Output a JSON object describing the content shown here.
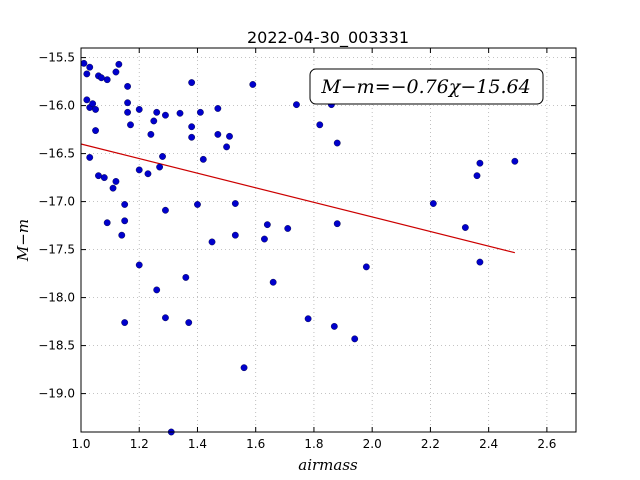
{
  "chart_data": {
    "type": "scatter",
    "title": "2022-04-30_003331",
    "xlabel": "airmass",
    "ylabel": "M−m",
    "xlim": [
      1.0,
      2.7
    ],
    "ylim": [
      -19.4,
      -15.4
    ],
    "xticks": [
      1.0,
      1.2,
      1.4,
      1.6,
      1.8,
      2.0,
      2.2,
      2.4,
      2.6
    ],
    "xtick_labels": [
      "1.0",
      "1.2",
      "1.4",
      "1.6",
      "1.8",
      "2.0",
      "2.2",
      "2.4",
      "2.6"
    ],
    "yticks": [
      -15.5,
      -16.0,
      -16.5,
      -17.0,
      -17.5,
      -18.0,
      -18.5,
      -19.0
    ],
    "ytick_labels": [
      "−15.5",
      "−16.0",
      "−16.5",
      "−17.0",
      "−17.5",
      "−18.0",
      "−18.5",
      "−19.0"
    ],
    "grid": true,
    "point_color": "#0000cc",
    "fit_color": "#cc0000",
    "fit_line": {
      "slope": -0.76,
      "intercept": -15.64,
      "x_range": [
        1.0,
        2.49
      ]
    },
    "annotation": "M−m=−0.76χ−15.64",
    "points": [
      [
        1.01,
        -15.56
      ],
      [
        1.02,
        -15.67
      ],
      [
        1.03,
        -15.6
      ],
      [
        1.06,
        -15.69
      ],
      [
        1.07,
        -15.71
      ],
      [
        1.09,
        -15.73
      ],
      [
        1.12,
        -15.65
      ],
      [
        1.13,
        -15.57
      ],
      [
        1.16,
        -15.8
      ],
      [
        1.02,
        -15.94
      ],
      [
        1.03,
        -16.02
      ],
      [
        1.04,
        -15.98
      ],
      [
        1.05,
        -16.04
      ],
      [
        1.05,
        -16.26
      ],
      [
        1.16,
        -15.97
      ],
      [
        1.16,
        -16.07
      ],
      [
        1.17,
        -16.2
      ],
      [
        1.2,
        -16.04
      ],
      [
        1.24,
        -16.3
      ],
      [
        1.25,
        -16.16
      ],
      [
        1.26,
        -16.07
      ],
      [
        1.29,
        -16.1
      ],
      [
        1.34,
        -16.08
      ],
      [
        1.38,
        -15.76
      ],
      [
        1.38,
        -16.22
      ],
      [
        1.38,
        -16.33
      ],
      [
        1.41,
        -16.07
      ],
      [
        1.42,
        -16.56
      ],
      [
        1.47,
        -16.03
      ],
      [
        1.47,
        -16.3
      ],
      [
        1.5,
        -16.43
      ],
      [
        1.51,
        -16.32
      ],
      [
        1.59,
        -15.78
      ],
      [
        1.74,
        -15.99
      ],
      [
        1.82,
        -16.2
      ],
      [
        1.86,
        -15.99
      ],
      [
        1.88,
        -16.39
      ],
      [
        1.03,
        -16.54
      ],
      [
        1.06,
        -16.73
      ],
      [
        1.08,
        -16.75
      ],
      [
        1.11,
        -16.86
      ],
      [
        1.12,
        -16.79
      ],
      [
        1.15,
        -17.03
      ],
      [
        1.15,
        -17.2
      ],
      [
        1.09,
        -17.22
      ],
      [
        1.14,
        -17.35
      ],
      [
        1.2,
        -16.67
      ],
      [
        1.23,
        -16.71
      ],
      [
        1.27,
        -16.64
      ],
      [
        1.28,
        -16.53
      ],
      [
        1.29,
        -17.09
      ],
      [
        1.4,
        -17.03
      ],
      [
        1.53,
        -17.02
      ],
      [
        1.45,
        -17.42
      ],
      [
        1.53,
        -17.35
      ],
      [
        1.63,
        -17.39
      ],
      [
        1.64,
        -17.24
      ],
      [
        1.71,
        -17.28
      ],
      [
        1.88,
        -17.23
      ],
      [
        1.2,
        -17.66
      ],
      [
        1.26,
        -17.92
      ],
      [
        1.36,
        -17.79
      ],
      [
        1.66,
        -17.84
      ],
      [
        1.98,
        -17.68
      ],
      [
        1.15,
        -18.26
      ],
      [
        1.29,
        -18.21
      ],
      [
        1.37,
        -18.26
      ],
      [
        1.78,
        -18.22
      ],
      [
        1.87,
        -18.3
      ],
      [
        1.94,
        -18.43
      ],
      [
        1.56,
        -18.73
      ],
      [
        1.31,
        -19.4
      ],
      [
        2.21,
        -17.02
      ],
      [
        2.32,
        -17.27
      ],
      [
        2.36,
        -16.73
      ],
      [
        2.37,
        -16.6
      ],
      [
        2.37,
        -17.63
      ],
      [
        2.49,
        -16.58
      ]
    ]
  }
}
